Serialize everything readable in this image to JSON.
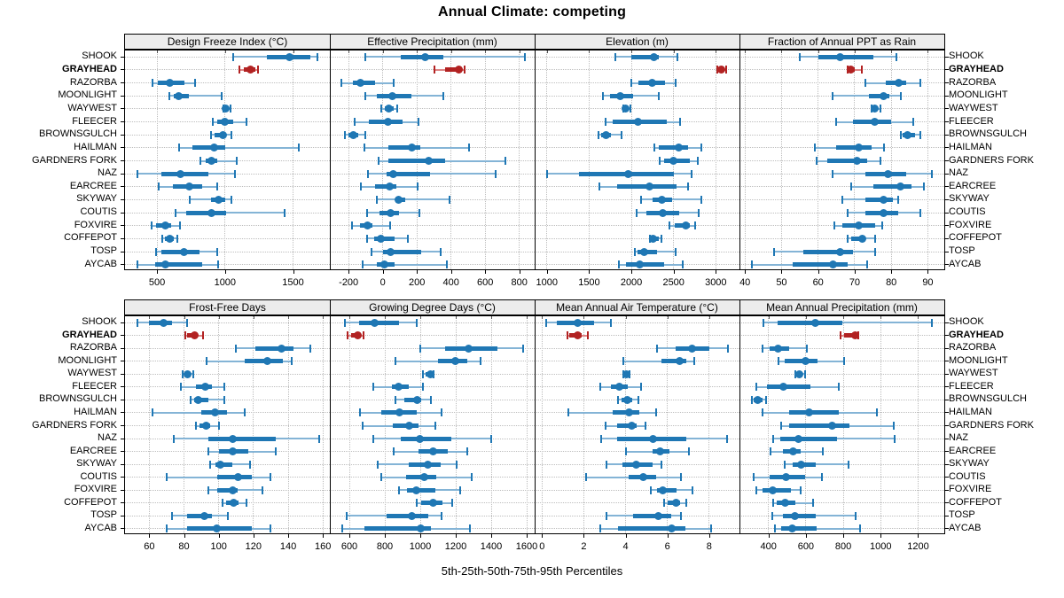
{
  "title": "Annual Climate: competing",
  "caption": "5th-25th-50th-75th-95th Percentiles",
  "highlight_site": "GRAYHEAD",
  "sites": [
    "SHOOK",
    "GRAYHEAD",
    "RAZORBA",
    "MOONLIGHT",
    "WAYWEST",
    "FLEECER",
    "BROWNSGULCH",
    "HAILMAN",
    "GARDNERS FORK",
    "NAZ",
    "EARCREE",
    "SKYWAY",
    "COUTIS",
    "FOXVIRE",
    "COFFEPOT",
    "TOSP",
    "AYCAB"
  ],
  "colors": {
    "primary": "#1f77b4",
    "primary_light": "#84b4d6",
    "highlight": "#b22222",
    "highlight_light": "#dd8585",
    "grid": "#bdbdbd",
    "strip_bg": "#ececec",
    "border": "#000000"
  },
  "chart_data": [
    {
      "type": "dotplot-percentiles",
      "row": 0,
      "col": 0,
      "title": "Design Freeze Index (°C)",
      "xlim": [
        265,
        1770
      ],
      "ticks": [
        500,
        1000,
        1500
      ],
      "percentiles": [
        "5th",
        "25th",
        "50th",
        "75th",
        "95th"
      ],
      "values": {
        "SHOOK": [
          1060,
          1310,
          1475,
          1625,
          1680
        ],
        "GRAYHEAD": [
          1105,
          1140,
          1190,
          1225,
          1245
        ],
        "RAZORBA": [
          465,
          505,
          595,
          700,
          780
        ],
        "MOONLIGHT": [
          590,
          625,
          660,
          735,
          975
        ],
        "WAYWEST": [
          985,
          995,
          1007,
          1020,
          1040
        ],
        "FLEECER": [
          910,
          940,
          995,
          1060,
          1160
        ],
        "BROWNSGULCH": [
          895,
          920,
          985,
          1010,
          1050
        ],
        "HAILMAN": [
          660,
          760,
          920,
          1000,
          1540
        ],
        "GARDNERS FORK": [
          820,
          855,
          900,
          940,
          1085
        ],
        "NAZ": [
          355,
          530,
          675,
          875,
          1070
        ],
        "EARCREE": [
          515,
          615,
          735,
          835,
          940
        ],
        "SKYWAY": [
          740,
          895,
          955,
          1000,
          1050
        ],
        "COUTIS": [
          635,
          715,
          900,
          1005,
          1440
        ],
        "FOXVIRE": [
          463,
          495,
          560,
          605,
          670
        ],
        "COFFEPOT": [
          540,
          560,
          595,
          625,
          650
        ],
        "TOSP": [
          495,
          530,
          700,
          810,
          940
        ],
        "AYCAB": [
          355,
          485,
          560,
          835,
          950
        ]
      }
    },
    {
      "type": "dotplot-percentiles",
      "row": 0,
      "col": 1,
      "title": "Effective Precipitation (mm)",
      "xlim": [
        -310,
        890
      ],
      "ticks": [
        -200,
        0,
        200,
        400,
        600,
        800
      ],
      "percentiles": [
        "5th",
        "25th",
        "50th",
        "75th",
        "95th"
      ],
      "values": {
        "SHOOK": [
          -100,
          105,
          250,
          355,
          835
        ],
        "GRAYHEAD": [
          305,
          365,
          445,
          465,
          480
        ],
        "RAZORBA": [
          -240,
          -175,
          -130,
          -45,
          65
        ],
        "MOONLIGHT": [
          -100,
          -35,
          55,
          170,
          355
        ],
        "WAYWEST": [
          -10,
          10,
          35,
          65,
          85
        ],
        "FLEECER": [
          -165,
          -80,
          30,
          115,
          210
        ],
        "BROWNSGULCH": [
          -220,
          -200,
          -170,
          -145,
          -100
        ],
        "HAILMAN": [
          -105,
          35,
          170,
          220,
          505
        ],
        "GARDNERS FORK": [
          -25,
          35,
          270,
          365,
          720
        ],
        "NAZ": [
          -85,
          20,
          60,
          275,
          660
        ],
        "EARCREE": [
          -130,
          -45,
          40,
          80,
          205
        ],
        "SKYWAY": [
          -35,
          75,
          90,
          130,
          390
        ],
        "COUTIS": [
          -90,
          -20,
          45,
          95,
          215
        ],
        "FOXVIRE": [
          -180,
          -135,
          -90,
          -60,
          45
        ],
        "COFFEPOT": [
          -90,
          -48,
          -10,
          70,
          145
        ],
        "TOSP": [
          -65,
          0,
          48,
          225,
          340
        ],
        "AYCAB": [
          -120,
          -35,
          10,
          70,
          375
        ]
      }
    },
    {
      "type": "dotplot-percentiles",
      "row": 0,
      "col": 2,
      "title": "Elevation (m)",
      "xlim": [
        855,
        3280
      ],
      "ticks": [
        1000,
        1500,
        2000,
        2500,
        3000
      ],
      "percentiles": [
        "5th",
        "25th",
        "50th",
        "75th",
        "95th"
      ],
      "values": {
        "SHOOK": [
          1810,
          2000,
          2270,
          2330,
          2550
        ],
        "GRAYHEAD": [
          3020,
          3040,
          3065,
          3090,
          3125
        ],
        "RAZORBA": [
          2000,
          2080,
          2250,
          2400,
          2520
        ],
        "MOONLIGHT": [
          1660,
          1750,
          1870,
          2020,
          2320
        ],
        "WAYWEST": [
          1900,
          1915,
          1930,
          1950,
          1985
        ],
        "FLEECER": [
          1690,
          1775,
          2075,
          2415,
          2575
        ],
        "BROWNSGULCH": [
          1610,
          1645,
          1700,
          1760,
          1880
        ],
        "HAILMAN": [
          2270,
          2320,
          2565,
          2670,
          2830
        ],
        "GARDNERS FORK": [
          2330,
          2390,
          2500,
          2690,
          2790
        ],
        "NAZ": [
          1000,
          1380,
          1965,
          2500,
          2715
        ],
        "EARCREE": [
          1620,
          1830,
          2215,
          2530,
          2670
        ],
        "SKYWAY": [
          2110,
          2250,
          2365,
          2480,
          2830
        ],
        "COUTIS": [
          2060,
          2180,
          2375,
          2565,
          2795
        ],
        "FOXVIRE": [
          2450,
          2515,
          2645,
          2690,
          2750
        ],
        "COFFEPOT": [
          2215,
          2230,
          2255,
          2330,
          2355
        ],
        "TOSP": [
          2040,
          2075,
          2155,
          2305,
          2525
        ],
        "AYCAB": [
          1850,
          1935,
          2095,
          2390,
          2610
        ]
      }
    },
    {
      "type": "dotplot-percentiles",
      "row": 0,
      "col": 3,
      "title": "Fraction of Annual PPT as Rain",
      "xlim": [
        38.5,
        94.5
      ],
      "ticks": [
        40,
        50,
        60,
        70,
        80,
        90
      ],
      "percentiles": [
        "5th",
        "25th",
        "50th",
        "75th",
        "95th"
      ],
      "values": {
        "SHOOK": [
          55,
          60,
          66,
          75,
          81.5
        ],
        "GRAYHEAD": [
          68,
          68.5,
          69,
          70,
          72
        ],
        "RAZORBA": [
          73,
          78.5,
          82,
          84,
          88
        ],
        "MOONLIGHT": [
          64,
          74,
          78,
          79.5,
          82.5
        ],
        "WAYWEST": [
          74.5,
          75,
          75.5,
          76,
          77
        ],
        "FLEECER": [
          65,
          69.5,
          75.5,
          80,
          86
        ],
        "BROWNSGULCH": [
          82.5,
          83,
          84.5,
          86.5,
          88
        ],
        "HAILMAN": [
          59,
          65,
          71,
          74.5,
          78
        ],
        "GARDNERS FORK": [
          59.5,
          62.5,
          70.5,
          73.5,
          77
        ],
        "NAZ": [
          64,
          73,
          79,
          84,
          91
        ],
        "EARCREE": [
          69,
          75,
          82.5,
          85.5,
          89
        ],
        "SKYWAY": [
          66.5,
          73,
          78,
          80.5,
          82
        ],
        "COUTIS": [
          68,
          73,
          78,
          82,
          88
        ],
        "FOXVIRE": [
          64.5,
          66.5,
          71,
          75.5,
          77.5
        ],
        "COFFEPOT": [
          68,
          69,
          72,
          73,
          75.5
        ],
        "TOSP": [
          48,
          56,
          66,
          69.5,
          75.5
        ],
        "AYCAB": [
          42,
          53,
          64,
          68,
          73.5
        ]
      }
    },
    {
      "type": "dotplot-percentiles",
      "row": 1,
      "col": 0,
      "title": "Frost-Free Days",
      "xlim": [
        46,
        164
      ],
      "ticks": [
        60,
        80,
        100,
        120,
        140,
        160
      ],
      "percentiles": [
        "5th",
        "25th",
        "50th",
        "75th",
        "95th"
      ],
      "values": {
        "SHOOK": [
          53,
          60,
          68,
          73,
          82
        ],
        "GRAYHEAD": [
          80.5,
          82,
          86,
          88,
          91
        ],
        "RAZORBA": [
          110,
          121,
          136,
          143,
          153
        ],
        "MOONLIGHT": [
          93,
          115,
          128,
          137,
          142
        ],
        "WAYWEST": [
          79,
          80.5,
          82,
          84,
          85.5
        ],
        "FLEECER": [
          78,
          87,
          92,
          96,
          103
        ],
        "BROWNSGULCH": [
          84,
          86,
          88,
          94,
          103
        ],
        "HAILMAN": [
          62,
          90,
          98,
          105,
          115
        ],
        "GARDNERS FORK": [
          87,
          89,
          92.5,
          95,
          100
        ],
        "NAZ": [
          74,
          94,
          108,
          133,
          158
        ],
        "EARCREE": [
          94,
          100,
          108,
          117,
          133
        ],
        "SKYWAY": [
          95,
          98,
          101,
          108,
          118
        ],
        "COUTIS": [
          70,
          99,
          111,
          119,
          130
        ],
        "FOXVIRE": [
          94,
          99,
          108,
          111,
          125
        ],
        "COFFEPOT": [
          102,
          104,
          108.5,
          111.5,
          116
        ],
        "TOSP": [
          73,
          82,
          91.5,
          96,
          105
        ],
        "AYCAB": [
          70,
          82,
          99,
          119,
          130
        ]
      }
    },
    {
      "type": "dotplot-percentiles",
      "row": 1,
      "col": 1,
      "title": "Growing Degree Days (°C)",
      "xlim": [
        490,
        1645
      ],
      "ticks": [
        600,
        800,
        1000,
        1200,
        1400,
        1600
      ],
      "percentiles": [
        "5th",
        "25th",
        "50th",
        "75th",
        "95th"
      ],
      "values": {
        "SHOOK": [
          577,
          655,
          740,
          880,
          980
        ],
        "GRAYHEAD": [
          590,
          610,
          645,
          660,
          680
        ],
        "RAZORBA": [
          1000,
          1140,
          1270,
          1435,
          1580
        ],
        "MOONLIGHT": [
          860,
          1100,
          1195,
          1265,
          1340
        ],
        "WAYWEST": [
          1015,
          1030,
          1055,
          1065,
          1075
        ],
        "FLEECER": [
          735,
          840,
          875,
          935,
          1013
        ],
        "BROWNSGULCH": [
          860,
          912,
          980,
          1005,
          1058
        ],
        "HAILMAN": [
          660,
          780,
          880,
          980,
          1120
        ],
        "GARDNERS FORK": [
          677,
          845,
          935,
          990,
          1087
        ],
        "NAZ": [
          735,
          890,
          995,
          1175,
          1400
        ],
        "EARCREE": [
          850,
          990,
          1070,
          1155,
          1265
        ],
        "SKYWAY": [
          760,
          935,
          1040,
          1115,
          1205
        ],
        "COUTIS": [
          778,
          920,
          1020,
          1090,
          1290
        ],
        "FOXVIRE": [
          880,
          925,
          975,
          1087,
          1225
        ],
        "COFFEPOT": [
          980,
          1005,
          1070,
          1125,
          1180
        ],
        "TOSP": [
          583,
          810,
          950,
          1045,
          1120
        ],
        "AYCAB": [
          560,
          685,
          1000,
          1060,
          1280
        ]
      }
    },
    {
      "type": "dotplot-percentiles",
      "row": 1,
      "col": 2,
      "title": "Mean Annual Air Temperature (°C)",
      "xlim": [
        -0.35,
        9.45
      ],
      "ticks": [
        0,
        2,
        4,
        6,
        8
      ],
      "percentiles": [
        "5th",
        "25th",
        "50th",
        "75th",
        "95th"
      ],
      "values": {
        "SHOOK": [
          0.2,
          0.7,
          1.7,
          2.5,
          3.3
        ],
        "GRAYHEAD": [
          1.2,
          1.3,
          1.7,
          1.9,
          2.2
        ],
        "RAZORBA": [
          5.5,
          6.4,
          7.2,
          8.0,
          8.9
        ],
        "MOONLIGHT": [
          3.9,
          5.7,
          6.6,
          6.9,
          7.3
        ],
        "WAYWEST": [
          3.9,
          3.95,
          4.05,
          4.1,
          4.2
        ],
        "FLEECER": [
          2.8,
          3.3,
          3.7,
          4.1,
          4.75
        ],
        "BROWNSGULCH": [
          3.65,
          3.8,
          4.1,
          4.3,
          4.6
        ],
        "HAILMAN": [
          1.25,
          3.4,
          4.15,
          4.65,
          5.45
        ],
        "GARDNERS FORK": [
          3.05,
          3.6,
          4.3,
          4.55,
          4.95
        ],
        "NAZ": [
          2.85,
          3.6,
          5.3,
          6.9,
          8.85
        ],
        "EARCREE": [
          4.0,
          5.3,
          5.65,
          6.1,
          7.05
        ],
        "SKYWAY": [
          3.1,
          3.85,
          4.5,
          5.3,
          5.7
        ],
        "COUTIS": [
          2.1,
          4.15,
          4.85,
          5.45,
          6.65
        ],
        "FOXVIRE": [
          5.2,
          5.5,
          5.8,
          6.45,
          7.2
        ],
        "COFFEPOT": [
          5.85,
          6.0,
          6.4,
          6.6,
          6.9
        ],
        "TOSP": [
          3.1,
          4.35,
          5.55,
          6.2,
          6.65
        ],
        "AYCAB": [
          2.8,
          3.65,
          6.2,
          6.85,
          8.1
        ]
      }
    },
    {
      "type": "dotplot-percentiles",
      "row": 1,
      "col": 3,
      "title": "Mean Annual Precipitation (mm)",
      "xlim": [
        245,
        1340
      ],
      "ticks": [
        400,
        600,
        800,
        1000,
        1200
      ],
      "percentiles": [
        "5th",
        "25th",
        "50th",
        "75th",
        "95th"
      ],
      "values": {
        "SHOOK": [
          375,
          450,
          650,
          795,
          1275
        ],
        "GRAYHEAD": [
          785,
          805,
          865,
          875,
          880
        ],
        "RAZORBA": [
          370,
          405,
          450,
          510,
          605
        ],
        "MOONLIGHT": [
          455,
          485,
          600,
          660,
          805
        ],
        "WAYWEST": [
          545,
          555,
          567,
          580,
          595
        ],
        "FLEECER": [
          335,
          390,
          478,
          625,
          775
        ],
        "BROWNSGULCH": [
          313,
          320,
          340,
          367,
          387
        ],
        "HAILMAN": [
          370,
          510,
          615,
          775,
          980
        ],
        "GARDNERS FORK": [
          470,
          510,
          740,
          835,
          1070
        ],
        "NAZ": [
          425,
          465,
          560,
          765,
          1075
        ],
        "EARCREE": [
          410,
          478,
          530,
          573,
          690
        ],
        "SKYWAY": [
          487,
          530,
          573,
          652,
          827
        ],
        "COUTIS": [
          320,
          405,
          494,
          594,
          684
        ],
        "FOXVIRE": [
          335,
          370,
          424,
          520,
          573
        ],
        "COFFEPOT": [
          424,
          446,
          487,
          546,
          637
        ],
        "TOSP": [
          420,
          478,
          541,
          652,
          868
        ],
        "AYCAB": [
          435,
          470,
          525,
          657,
          890
        ]
      }
    }
  ]
}
